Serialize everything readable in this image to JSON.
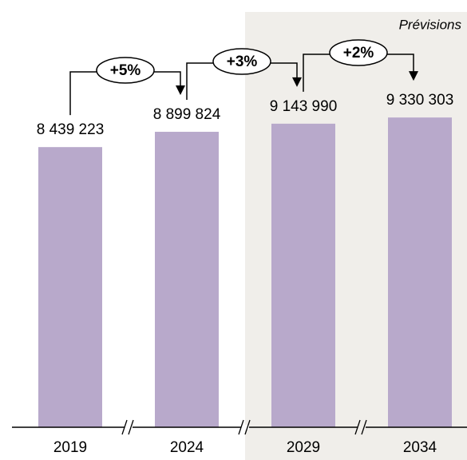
{
  "chart_data": {
    "type": "bar",
    "categories": [
      "2019",
      "2024",
      "2029",
      "2034"
    ],
    "values": [
      8439223,
      8899824,
      9143990,
      9330303
    ],
    "value_labels": [
      "8 439 223",
      "8 899 824",
      "9 143 990",
      "9 330 303"
    ],
    "color": "#b8a9cb",
    "ylim": [
      0,
      12870000
    ],
    "annotations": [
      "+5%",
      "+3%",
      "+2%"
    ],
    "forecast_label": "Prévisions"
  }
}
